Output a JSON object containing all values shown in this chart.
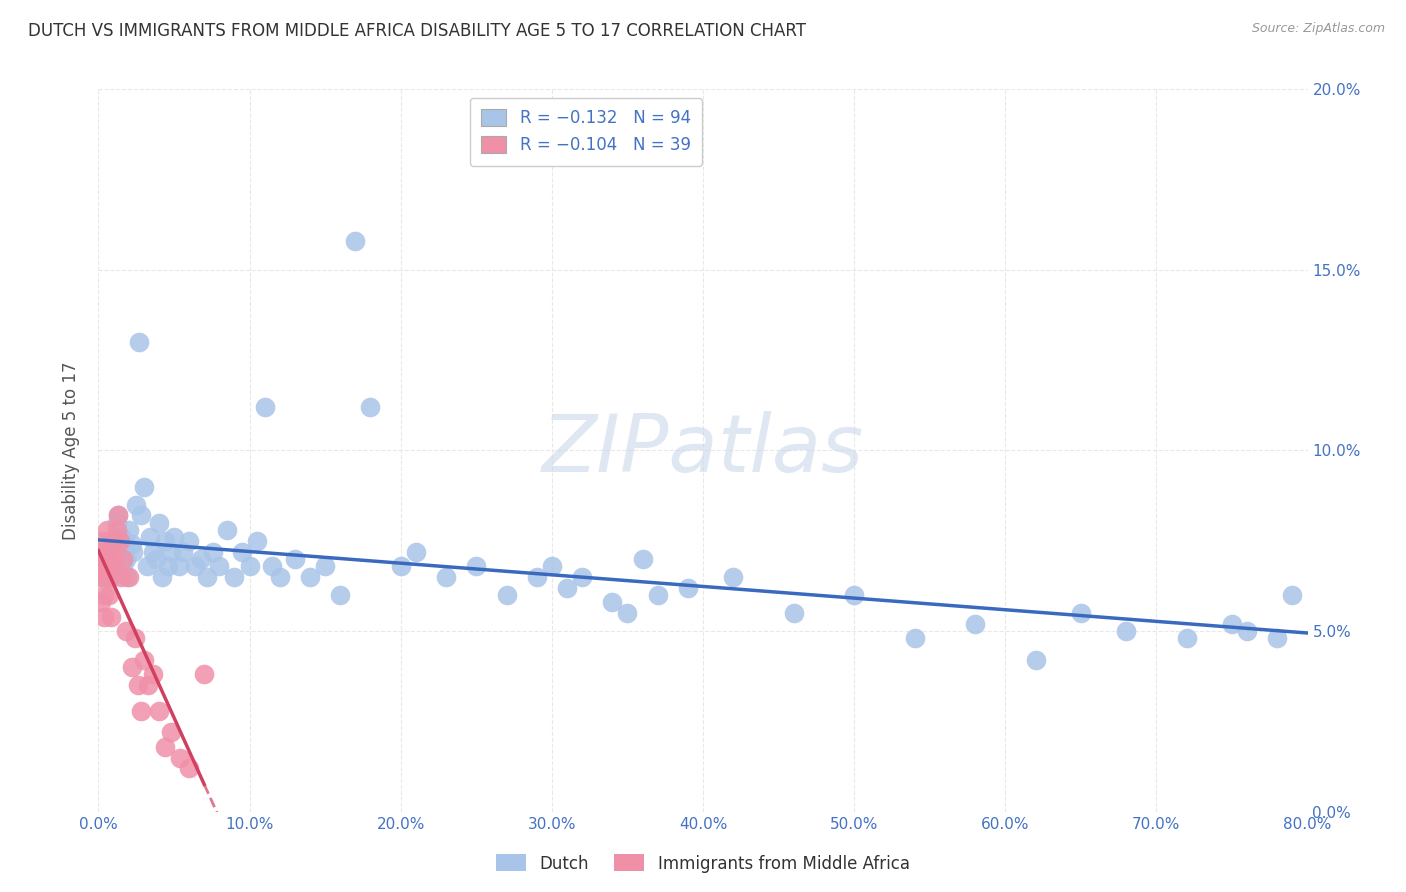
{
  "title": "DUTCH VS IMMIGRANTS FROM MIDDLE AFRICA DISABILITY AGE 5 TO 17 CORRELATION CHART",
  "source": "Source: ZipAtlas.com",
  "ylabel": "Disability Age 5 to 17",
  "watermark": "ZIPatlas",
  "dutch": {
    "R": -0.132,
    "N": 94,
    "color": "#a8c4e8",
    "line_color": "#3a6abf",
    "label": "Dutch",
    "x": [
      0.001,
      0.002,
      0.002,
      0.003,
      0.003,
      0.004,
      0.004,
      0.005,
      0.005,
      0.006,
      0.006,
      0.007,
      0.007,
      0.008,
      0.008,
      0.009,
      0.009,
      0.01,
      0.01,
      0.011,
      0.012,
      0.013,
      0.014,
      0.015,
      0.016,
      0.017,
      0.018,
      0.019,
      0.02,
      0.022,
      0.023,
      0.025,
      0.027,
      0.028,
      0.03,
      0.032,
      0.034,
      0.036,
      0.038,
      0.04,
      0.042,
      0.044,
      0.046,
      0.048,
      0.05,
      0.053,
      0.056,
      0.06,
      0.064,
      0.068,
      0.072,
      0.076,
      0.08,
      0.085,
      0.09,
      0.095,
      0.1,
      0.105,
      0.11,
      0.115,
      0.12,
      0.13,
      0.14,
      0.15,
      0.16,
      0.17,
      0.18,
      0.2,
      0.21,
      0.23,
      0.25,
      0.27,
      0.29,
      0.31,
      0.34,
      0.36,
      0.39,
      0.42,
      0.46,
      0.5,
      0.54,
      0.58,
      0.62,
      0.65,
      0.68,
      0.72,
      0.75,
      0.76,
      0.78,
      0.79,
      0.3,
      0.32,
      0.35,
      0.37
    ],
    "y": [
      0.068,
      0.07,
      0.065,
      0.072,
      0.068,
      0.071,
      0.066,
      0.07,
      0.065,
      0.068,
      0.072,
      0.065,
      0.07,
      0.067,
      0.073,
      0.065,
      0.071,
      0.068,
      0.074,
      0.066,
      0.08,
      0.082,
      0.072,
      0.076,
      0.068,
      0.075,
      0.07,
      0.065,
      0.078,
      0.074,
      0.072,
      0.085,
      0.13,
      0.082,
      0.09,
      0.068,
      0.076,
      0.072,
      0.07,
      0.08,
      0.065,
      0.075,
      0.068,
      0.072,
      0.076,
      0.068,
      0.072,
      0.075,
      0.068,
      0.07,
      0.065,
      0.072,
      0.068,
      0.078,
      0.065,
      0.072,
      0.068,
      0.075,
      0.112,
      0.068,
      0.065,
      0.07,
      0.065,
      0.068,
      0.06,
      0.158,
      0.112,
      0.068,
      0.072,
      0.065,
      0.068,
      0.06,
      0.065,
      0.062,
      0.058,
      0.07,
      0.062,
      0.065,
      0.055,
      0.06,
      0.048,
      0.052,
      0.042,
      0.055,
      0.05,
      0.048,
      0.052,
      0.05,
      0.048,
      0.06,
      0.068,
      0.065,
      0.055,
      0.06
    ]
  },
  "immigrants": {
    "R": -0.104,
    "N": 39,
    "color": "#f090a8",
    "line_color": "#d04060",
    "label": "Immigrants from Middle Africa",
    "x": [
      0.001,
      0.001,
      0.002,
      0.002,
      0.003,
      0.003,
      0.004,
      0.004,
      0.005,
      0.005,
      0.006,
      0.006,
      0.007,
      0.007,
      0.008,
      0.008,
      0.009,
      0.01,
      0.011,
      0.012,
      0.013,
      0.014,
      0.015,
      0.016,
      0.018,
      0.02,
      0.022,
      0.024,
      0.026,
      0.028,
      0.03,
      0.033,
      0.036,
      0.04,
      0.044,
      0.048,
      0.054,
      0.06,
      0.07
    ],
    "y": [
      0.068,
      0.072,
      0.065,
      0.058,
      0.075,
      0.068,
      0.06,
      0.054,
      0.072,
      0.065,
      0.078,
      0.07,
      0.065,
      0.06,
      0.068,
      0.054,
      0.068,
      0.07,
      0.075,
      0.078,
      0.082,
      0.075,
      0.065,
      0.07,
      0.05,
      0.065,
      0.04,
      0.048,
      0.035,
      0.028,
      0.042,
      0.035,
      0.038,
      0.028,
      0.018,
      0.022,
      0.015,
      0.012,
      0.038
    ]
  },
  "xlim": [
    0.0,
    0.8
  ],
  "ylim": [
    0.0,
    0.2
  ],
  "xticks": [
    0.0,
    0.1,
    0.2,
    0.3,
    0.4,
    0.5,
    0.6,
    0.7,
    0.8
  ],
  "xticklabels": [
    "0.0%",
    "10.0%",
    "20.0%",
    "30.0%",
    "40.0%",
    "50.0%",
    "60.0%",
    "70.0%",
    "80.0%"
  ],
  "yticks": [
    0.0,
    0.05,
    0.1,
    0.15,
    0.2
  ],
  "yticklabels": [
    "0.0%",
    "5.0%",
    "10.0%",
    "15.0%",
    "20.0%"
  ],
  "grid_color": "#e8e8e8",
  "background_color": "#ffffff",
  "title_color": "#333333",
  "axis_color": "#4472c4",
  "legend_R_dutch": "R = −0.132",
  "legend_N_dutch": "N = 94",
  "legend_R_imm": "R = −0.104",
  "legend_N_imm": "N = 39",
  "legend_color_dutch": "#a8c4e8",
  "legend_color_imm": "#f090a8"
}
